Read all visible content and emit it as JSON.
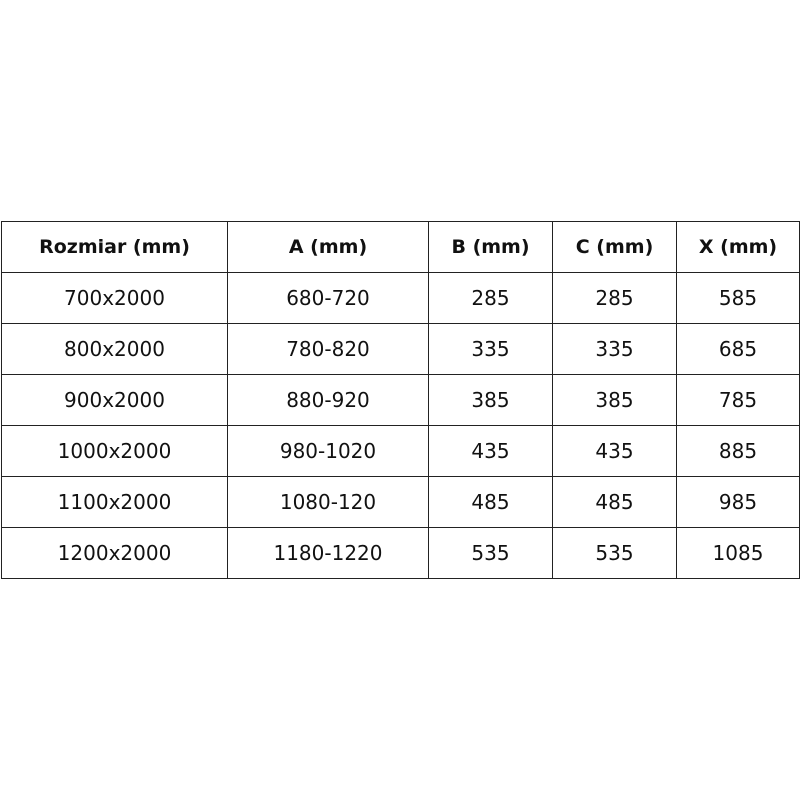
{
  "table": {
    "headers": [
      "Rozmiar (mm)",
      "A (mm)",
      "B (mm)",
      "C (mm)",
      "X (mm)"
    ],
    "rows": [
      [
        "700x2000",
        "680-720",
        "285",
        "285",
        "585"
      ],
      [
        "800x2000",
        "780-820",
        "335",
        "335",
        "685"
      ],
      [
        "900x2000",
        "880-920",
        "385",
        "385",
        "785"
      ],
      [
        "1000x2000",
        "980-1020",
        "435",
        "435",
        "885"
      ],
      [
        "1100x2000",
        "1080-120",
        "485",
        "485",
        "985"
      ],
      [
        "1200x2000",
        "1180-1220",
        "535",
        "535",
        "1085"
      ]
    ]
  }
}
